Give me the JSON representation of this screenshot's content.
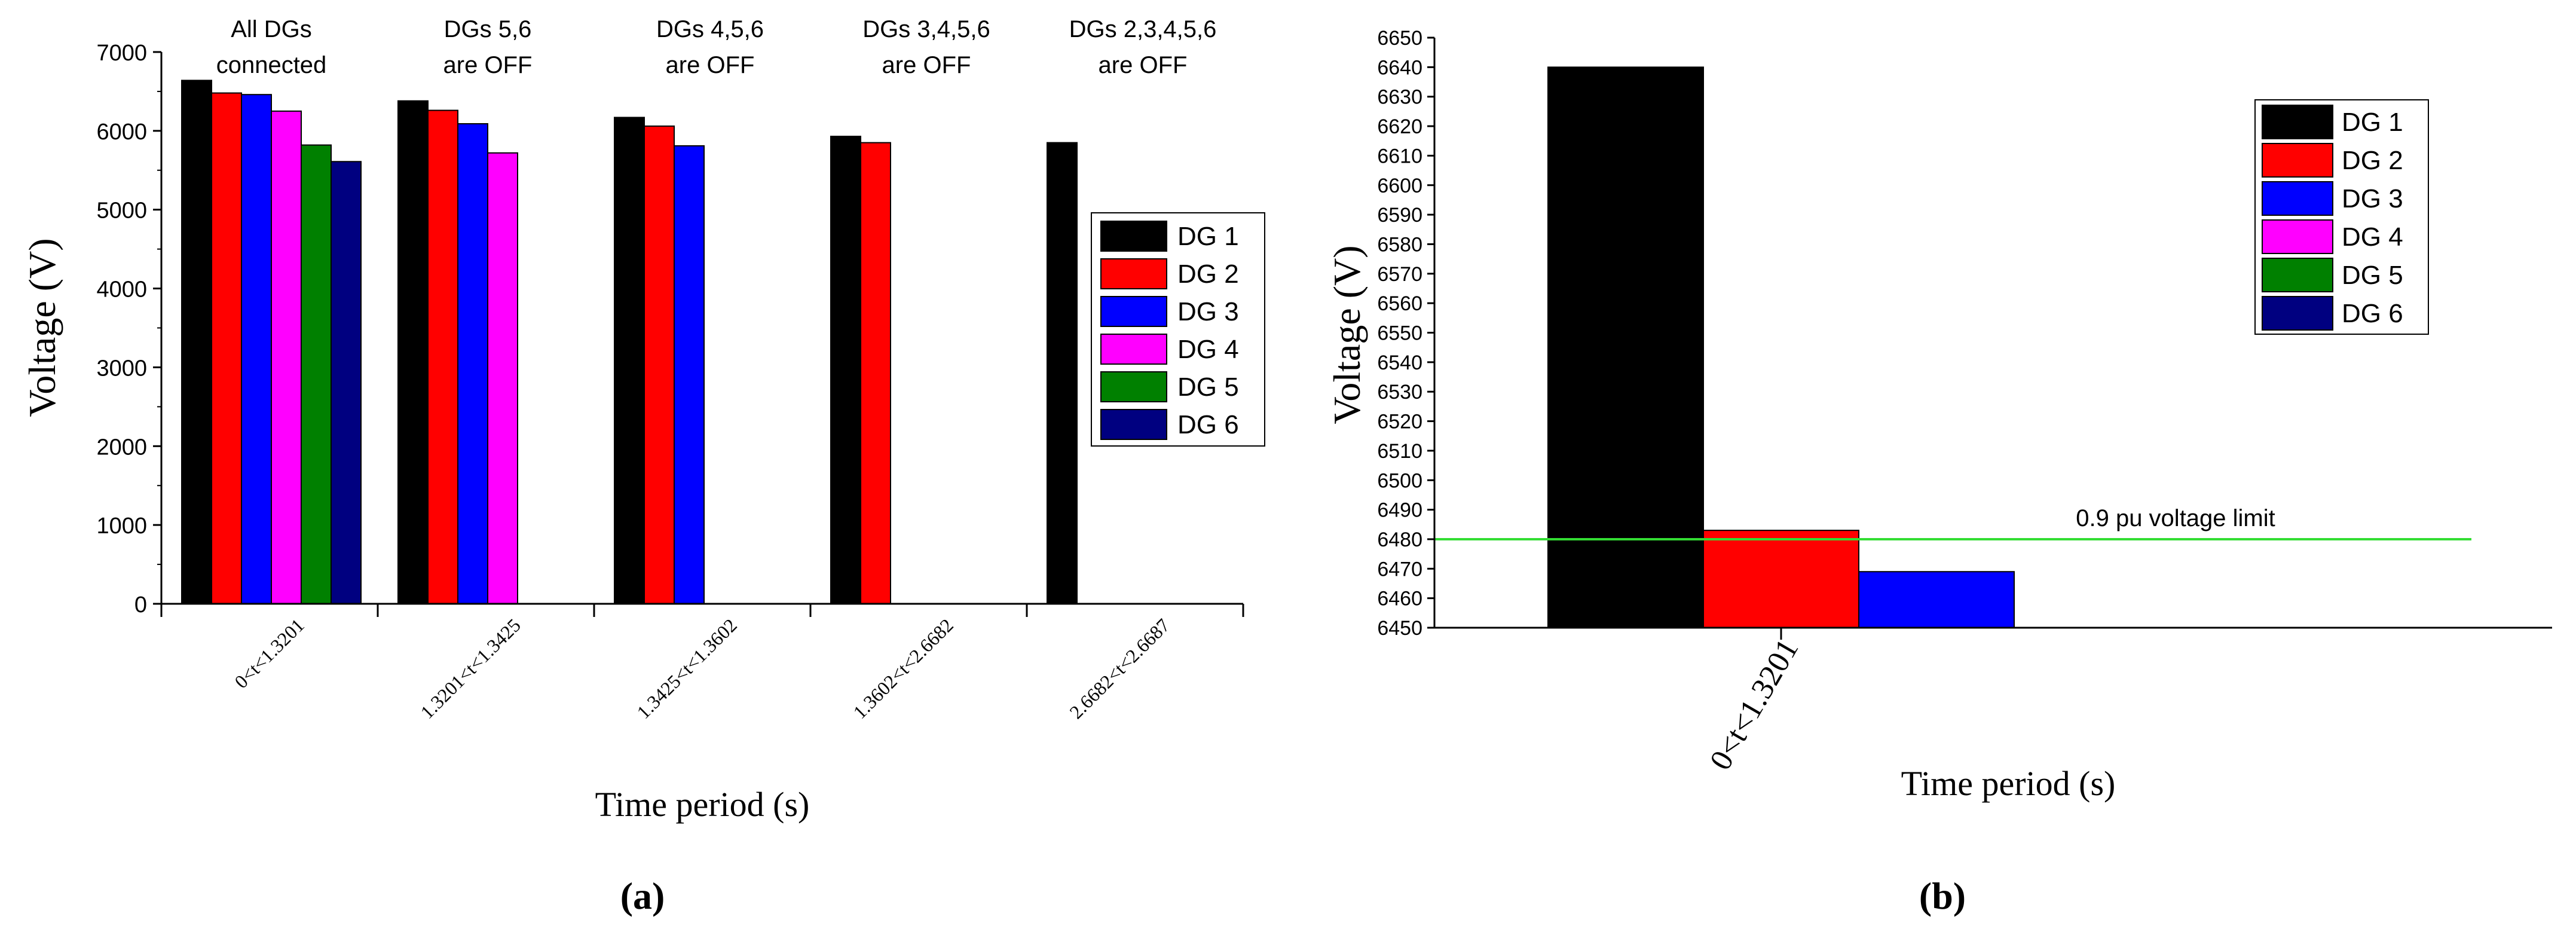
{
  "chart_data": [
    {
      "type": "bar",
      "panel_label": "a",
      "categories": [
        "0<t<1.3201",
        "1.3201<t<1.3425",
        "1.3425<t<1.3602",
        "1.3602<t<2.6682",
        "2.6682<t<2.6687"
      ],
      "group_annotations": [
        [
          "All DGs",
          "connected"
        ],
        [
          "DGs 5,6",
          "are OFF"
        ],
        [
          "DGs 4,5,6",
          "are OFF"
        ],
        [
          "DGs 3,4,5,6",
          "are OFF"
        ],
        [
          "DGs 2,3,4,5,6",
          "are OFF"
        ]
      ],
      "series": [
        {
          "name": "DG 1",
          "values": [
            6640,
            6380,
            6170,
            5930,
            5850
          ]
        },
        {
          "name": "DG 2",
          "values": [
            6480,
            6260,
            6060,
            5850,
            null
          ]
        },
        {
          "name": "DG 3",
          "values": [
            6460,
            6090,
            5810,
            null,
            null
          ]
        },
        {
          "name": "DG 4",
          "values": [
            6250,
            5720,
            null,
            null,
            null
          ]
        },
        {
          "name": "DG 5",
          "values": [
            5820,
            null,
            null,
            null,
            null
          ]
        },
        {
          "name": "DG 6",
          "values": [
            5610,
            null,
            null,
            null,
            null
          ]
        }
      ],
      "colors": [
        "#000000",
        "#ff0000",
        "#0000ff",
        "#ff00ff",
        "#008000",
        "#000080"
      ],
      "xlabel": "Time period (s)",
      "ylabel": "Voltage (V)",
      "ylim": [
        0,
        7000
      ],
      "yticks": [
        0,
        1000,
        2000,
        3000,
        4000,
        5000,
        6000,
        7000
      ],
      "grid": false,
      "legend": "right"
    },
    {
      "type": "bar",
      "panel_label": "b",
      "categories": [
        "0<t<1.3201"
      ],
      "series": [
        {
          "name": "DG 1",
          "values": [
            6640
          ]
        },
        {
          "name": "DG 2",
          "values": [
            6483
          ]
        },
        {
          "name": "DG 3",
          "values": [
            6469
          ]
        },
        {
          "name": "DG 4",
          "values": [
            null
          ]
        },
        {
          "name": "DG 5",
          "values": [
            null
          ]
        },
        {
          "name": "DG 6",
          "values": [
            null
          ]
        }
      ],
      "colors": [
        "#000000",
        "#ff0000",
        "#0000ff",
        "#ff00ff",
        "#008000",
        "#000080"
      ],
      "reference_line": {
        "value": 6480,
        "label": "0.9 pu voltage limit",
        "color": "#33dd33"
      },
      "xlabel": "Time period (s)",
      "ylabel": "Voltage (V)",
      "ylim": [
        6450,
        6650
      ],
      "yticks": [
        6450,
        6460,
        6470,
        6480,
        6490,
        6500,
        6510,
        6520,
        6530,
        6540,
        6550,
        6560,
        6570,
        6580,
        6590,
        6600,
        6610,
        6620,
        6630,
        6640,
        6650
      ],
      "grid": false,
      "legend": "top-right"
    }
  ]
}
